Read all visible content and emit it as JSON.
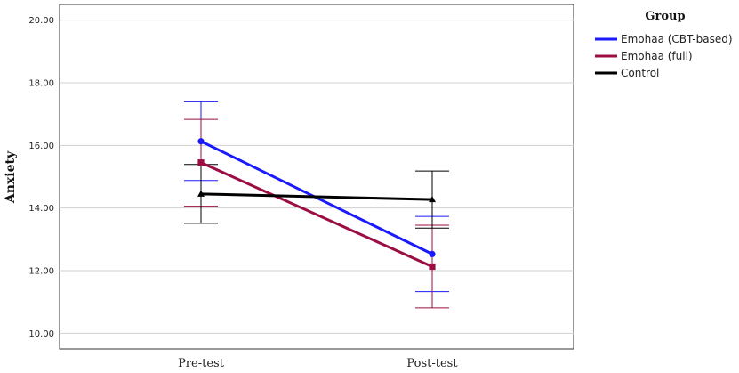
{
  "chart_data": {
    "type": "line",
    "ylabel": "Anxiety",
    "ylim": [
      9.5,
      20.5
    ],
    "yticks": [
      "10.00",
      "12.00",
      "14.00",
      "16.00",
      "18.00",
      "20.00"
    ],
    "categories": [
      "Pre-test",
      "Post-test"
    ],
    "grid": true,
    "legend": {
      "title": "Group",
      "placement": "right"
    },
    "series": [
      {
        "name": "Emohaa (CBT-based)",
        "color": "#1a1aff",
        "marker": "circle",
        "values": [
          16.13,
          12.53
        ],
        "ci_low": [
          14.88,
          11.33
        ],
        "ci_high": [
          17.39,
          13.73
        ]
      },
      {
        "name": "Emohaa (full)",
        "color": "#9b0d43",
        "marker": "square",
        "values": [
          15.45,
          12.13
        ],
        "ci_low": [
          14.06,
          10.81
        ],
        "ci_high": [
          16.83,
          13.45
        ]
      },
      {
        "name": "Control",
        "color": "#000000",
        "marker": "triangle",
        "values": [
          14.45,
          14.27
        ],
        "ci_low": [
          13.51,
          13.36
        ],
        "ci_high": [
          15.39,
          15.18
        ]
      }
    ]
  }
}
